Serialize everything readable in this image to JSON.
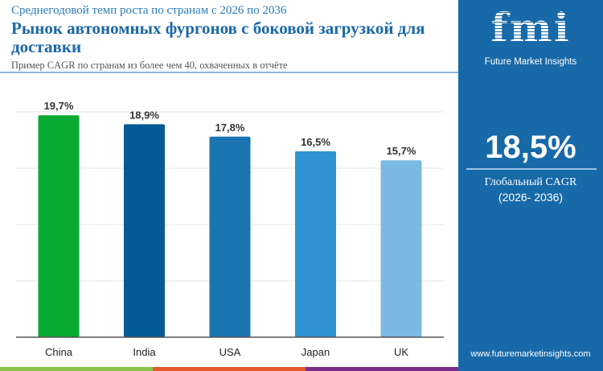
{
  "header": {
    "subtitle": "Среднегодовой темп роста по странам с 2026 по 2036",
    "title": "Рынок автономных фургонов с боковой загрузкой для доставки",
    "note": "Пример CAGR по странам из более чем 40, охваченных в отчёте"
  },
  "panel": {
    "logo_text": "fmi",
    "brand": "Future Market Insights",
    "global_value": "18,5%",
    "global_label": "Глобальный CAGR",
    "period": "(2026- 2036)",
    "url": "www.futuremarketinsights.com",
    "bg": "#1769a8"
  },
  "strip_colors": [
    "#8bc34a",
    "#e55a2b",
    "#7b2d8b"
  ],
  "chart_data": {
    "type": "bar",
    "categories": [
      "China",
      "India",
      "USA",
      "Japan",
      "UK"
    ],
    "values": [
      19.7,
      18.9,
      17.8,
      16.5,
      15.7
    ],
    "data_labels": [
      "19,7%",
      "18,9%",
      "17,8%",
      "16,5%",
      "15,7%"
    ],
    "colors": [
      "#0aab32",
      "#045a94",
      "#1a75b0",
      "#2f93d4",
      "#7cb9e2"
    ],
    "ylim": [
      0,
      20
    ],
    "grid": true
  }
}
